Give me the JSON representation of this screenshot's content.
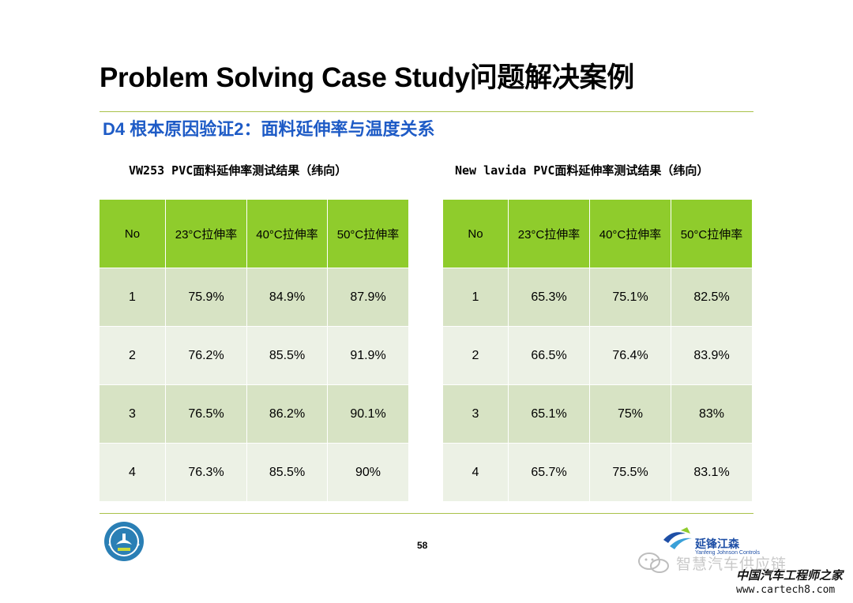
{
  "title": "Problem Solving Case Study问题解决案例",
  "subtitle": "D4 根本原因验证2：面料延伸率与温度关系",
  "colors": {
    "header_green": "#8fcc2c",
    "row_odd": "#d7e3c4",
    "row_even": "#ecf1e5",
    "subtitle_blue": "#1e5bc6",
    "rule_green": "#a9c24a"
  },
  "tables": [
    {
      "caption": "VW253 PVC面料延伸率测试结果（纬向）",
      "headers": [
        "No",
        "23°C拉伸率",
        "40°C拉伸率",
        "50°C拉伸率"
      ],
      "rows": [
        [
          "1",
          "75.9%",
          "84.9%",
          "87.9%"
        ],
        [
          "2",
          "76.2%",
          "85.5%",
          "91.9%"
        ],
        [
          "3",
          "76.5%",
          "86.2%",
          "90.1%"
        ],
        [
          "4",
          "76.3%",
          "85.5%",
          "90%"
        ]
      ]
    },
    {
      "caption": "New lavida PVC面料延伸率测试结果（纬向）",
      "headers": [
        "No",
        "23°C拉伸率",
        "40°C拉伸率",
        "50°C拉伸率"
      ],
      "rows": [
        [
          "1",
          "65.3%",
          "75.1%",
          "82.5%"
        ],
        [
          "2",
          "66.5%",
          "76.4%",
          "83.9%"
        ],
        [
          "3",
          "65.1%",
          "75%",
          "83%"
        ],
        [
          "4",
          "65.7%",
          "75.5%",
          "83.1%"
        ]
      ]
    }
  ],
  "page_number": "58",
  "logos": {
    "seal_icon": "yjc-college-seal-icon",
    "company_icon": "yanfeng-johnson-controls-logo-icon",
    "company_name": "延锋江森",
    "company_sub": "Yanfeng Johnson Controls"
  },
  "watermark": {
    "wechat_icon": "wechat-icon",
    "text": "智慧汽车供应链",
    "site_cn": "中国汽车工程师之家",
    "site_url": "www.cartech8.com"
  }
}
